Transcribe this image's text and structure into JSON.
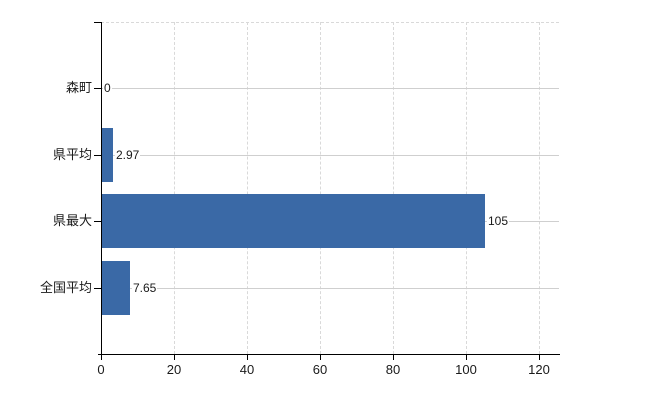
{
  "chart_data": {
    "type": "bar",
    "orientation": "horizontal",
    "categories": [
      "森町",
      "県平均",
      "県最大",
      "全国平均"
    ],
    "values": [
      0,
      2.97,
      105,
      7.65
    ],
    "value_labels": [
      "0",
      "2.97",
      "105",
      "7.65"
    ],
    "x_ticks": [
      0,
      20,
      40,
      60,
      80,
      100,
      120
    ],
    "x_tick_labels": [
      "0",
      "20",
      "40",
      "60",
      "80",
      "100",
      "120"
    ],
    "xlim": [
      0,
      120
    ],
    "xlabel": "",
    "ylabel": "",
    "legend": "none",
    "grid": {
      "vertical": "dashed",
      "horizontal": "solid",
      "top_boundary": "dashed"
    },
    "colors": {
      "bar": "#3a69a6",
      "axis": "#000000",
      "grid_vertical": "#d9d9d9",
      "grid_horizontal": "#cfcfcf",
      "text": "#1a1a1a",
      "background": "#ffffff"
    }
  }
}
